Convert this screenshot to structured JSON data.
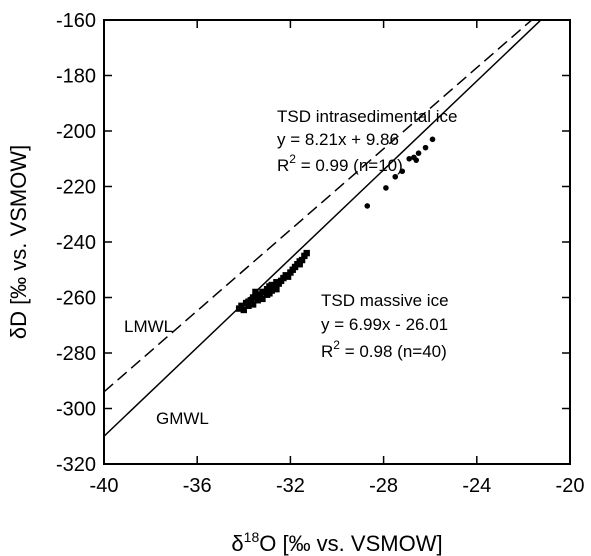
{
  "chart_data": {
    "type": "scatter",
    "xlim": [
      -40,
      -20
    ],
    "ylim": [
      -320,
      -160
    ],
    "x_ticks": [
      -40,
      -36,
      -32,
      -28,
      -24,
      -20
    ],
    "y_ticks": [
      -160,
      -180,
      -200,
      -220,
      -240,
      -260,
      -280,
      -300,
      -320
    ],
    "x_tick_labels": [
      "-40",
      "-36",
      "-32",
      "-28",
      "-24",
      "-20"
    ],
    "y_tick_labels": [
      "-160",
      "-180",
      "-200",
      "-220",
      "-240",
      "-260",
      "-280",
      "-300",
      "-320"
    ],
    "xlabel": {
      "pre": "δ",
      "sup": "18",
      "post": "O [‰ vs. VSMOW]"
    },
    "ylabel": "δD [‰ vs. VSMOW]",
    "grid": false,
    "series": [
      {
        "name": "TSD intrasedimental ice",
        "marker": "circle",
        "points": [
          [
            -28.7,
            -227
          ],
          [
            -27.9,
            -220.5
          ],
          [
            -27.5,
            -216.5
          ],
          [
            -27.2,
            -214.5
          ],
          [
            -26.9,
            -210
          ],
          [
            -26.7,
            -209.5
          ],
          [
            -26.6,
            -210.5
          ],
          [
            -26.5,
            -208
          ],
          [
            -26.2,
            -206
          ],
          [
            -25.9,
            -203
          ]
        ]
      },
      {
        "name": "TSD massive ice",
        "marker": "square",
        "points": [
          [
            -34.2,
            -264
          ],
          [
            -34.0,
            -264.5
          ],
          [
            -33.9,
            -262
          ],
          [
            -33.8,
            -263
          ],
          [
            -33.7,
            -261
          ],
          [
            -33.6,
            -262.5
          ],
          [
            -33.5,
            -260
          ],
          [
            -33.4,
            -261
          ],
          [
            -33.3,
            -259
          ],
          [
            -33.2,
            -260.5
          ],
          [
            -33.1,
            -258
          ],
          [
            -33.0,
            -259
          ],
          [
            -33.0,
            -257
          ],
          [
            -32.9,
            -258.5
          ],
          [
            -32.8,
            -257.5
          ],
          [
            -32.7,
            -256
          ],
          [
            -32.6,
            -257
          ],
          [
            -32.5,
            -255
          ],
          [
            -32.4,
            -254
          ],
          [
            -32.3,
            -253
          ],
          [
            -32.2,
            -252
          ],
          [
            -32.0,
            -251
          ],
          [
            -31.8,
            -249
          ],
          [
            -31.7,
            -248
          ],
          [
            -31.6,
            -247
          ],
          [
            -31.5,
            -246.5
          ],
          [
            -31.4,
            -245
          ],
          [
            -31.3,
            -244
          ],
          [
            -33.5,
            -258
          ],
          [
            -33.8,
            -261.5
          ],
          [
            -32.9,
            -256
          ],
          [
            -32.6,
            -254.5
          ],
          [
            -33.2,
            -258
          ],
          [
            -33.6,
            -260
          ],
          [
            -34.1,
            -263
          ],
          [
            -32.1,
            -252.5
          ],
          [
            -31.9,
            -250
          ],
          [
            -31.6,
            -248
          ],
          [
            -32.8,
            -255.5
          ],
          [
            -33.3,
            -260
          ]
        ]
      }
    ],
    "lines": [
      {
        "name": "GMWL",
        "style": "solid",
        "slope": 8,
        "intercept": 10
      },
      {
        "name": "LMWL",
        "style": "dashed",
        "slope": 7.3,
        "intercept": -2
      }
    ],
    "annotations": {
      "intrasedimental": {
        "title": "TSD intrasedimental ice",
        "equation": "y = 8.21x  + 9.86",
        "r2_prefix": "R",
        "r2_sup": "2",
        "r2_rest": " = 0.99 (n=10)"
      },
      "massive": {
        "title": "TSD massive ice",
        "equation": "y = 6.99x  - 26.01",
        "r2_prefix": "R",
        "r2_sup": "2",
        "r2_rest": " = 0.98 (n=40)"
      },
      "lmwl_label": "LMWL",
      "gmwl_label": "GMWL"
    }
  }
}
